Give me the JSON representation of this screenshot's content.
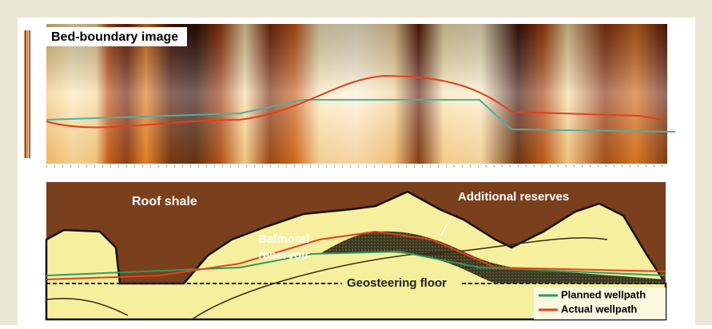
{
  "top_panel": {
    "title": "Bed-boundary image"
  },
  "bottom_panel": {
    "roof_shale": "Roof shale",
    "reservoir": [
      "Balmoral",
      "reservoir"
    ],
    "additional_reserves": "Additional reserves",
    "geosteering_floor": "Geosteering floor",
    "legend": [
      {
        "label": "Planned wellpath",
        "color": "#2f9a5c"
      },
      {
        "label": "Actual wellpath",
        "color": "#e2401c"
      }
    ]
  }
}
